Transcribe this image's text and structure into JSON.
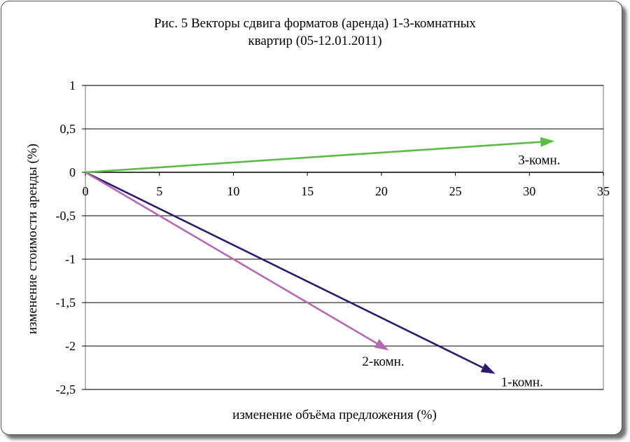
{
  "chart_data": {
    "type": "vector",
    "title_lines": [
      "Рис. 5 Векторы сдвига форматов (аренда) 1-3-комнатных",
      "квартир (05-12.01.2011)"
    ],
    "xlabel": "изменение объёма предложения (%)",
    "ylabel": "изменение стоимости аренды (%)",
    "xlim": [
      0,
      35
    ],
    "ylim": [
      -2.5,
      1
    ],
    "x_ticks": [
      "0",
      "5",
      "10",
      "15",
      "20",
      "25",
      "30",
      "35"
    ],
    "x_tick_values": [
      0,
      5,
      10,
      15,
      20,
      25,
      30,
      35
    ],
    "y_ticks": [
      "1",
      "0,5",
      "0",
      "-0,5",
      "-1",
      "-1,5",
      "-2",
      "-2,5"
    ],
    "y_tick_values": [
      1,
      0.5,
      0,
      -0.5,
      -1,
      -1.5,
      -2,
      -2.5
    ],
    "grid": true,
    "series": [
      {
        "name": "1-комн.",
        "x": [
          0,
          27.7
        ],
        "y": [
          0,
          -2.32
        ],
        "color": "#2b1a6e"
      },
      {
        "name": "2-комн.",
        "x": [
          0,
          20.5
        ],
        "y": [
          0,
          -2.05
        ],
        "color": "#b569b0"
      },
      {
        "name": "3-комн.",
        "x": [
          0,
          31.7
        ],
        "y": [
          0,
          0.36
        ],
        "color": "#5bbb46"
      }
    ]
  }
}
